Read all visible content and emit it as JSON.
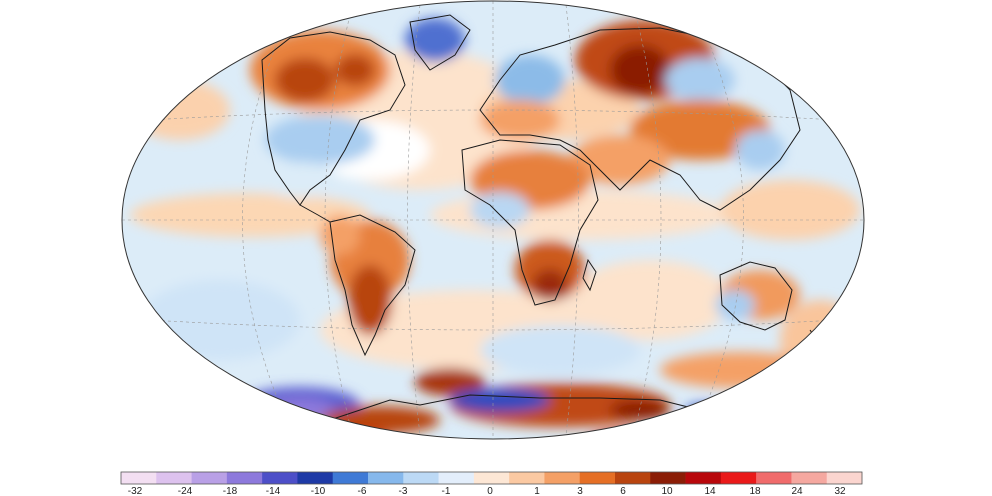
{
  "map": {
    "projection": "Winkel tripel",
    "ocean_base_color": "#dcecf8",
    "land_outline_color": "#1a1a1a",
    "graticule_color": "#9a9a9a"
  },
  "legend": {
    "ticks": [
      "-32",
      "-24",
      "-18",
      "-14",
      "-10",
      "-6",
      "-3",
      "-1",
      "0",
      "1",
      "3",
      "6",
      "10",
      "14",
      "18",
      "24",
      "32"
    ],
    "colors": [
      "#f3dff2",
      "#ddc2ee",
      "#b9a0e6",
      "#8d79dc",
      "#4d4fc8",
      "#1e3aa6",
      "#3f7ad6",
      "#86b8ec",
      "#bcd9f5",
      "#e3eefb",
      "#fde7d5",
      "#fbc9a2",
      "#f4a066",
      "#e56f25",
      "#b9440f",
      "#8b1d06",
      "#b8070b",
      "#ea1919",
      "#f06b6b",
      "#f5a8a0",
      "#fbd5cf"
    ]
  }
}
